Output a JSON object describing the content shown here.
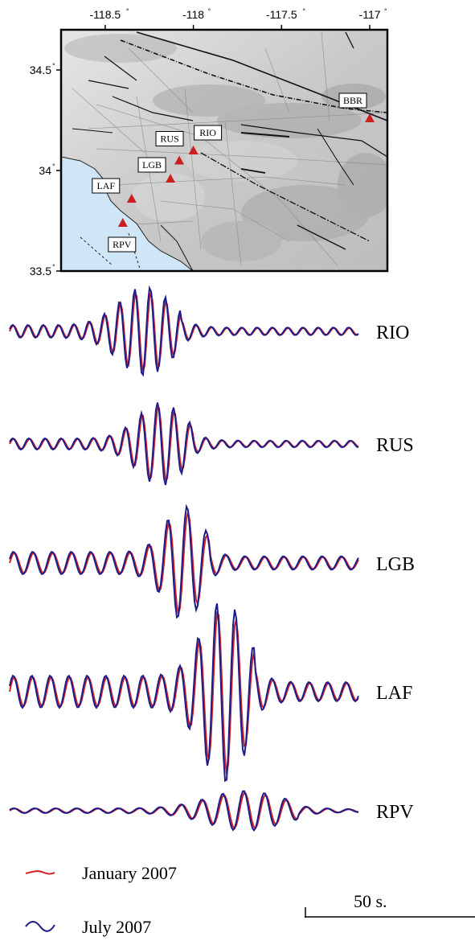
{
  "map": {
    "x_ticks": [
      {
        "lon": -118.5,
        "label": "-118.5"
      },
      {
        "lon": -118.0,
        "label": "-118"
      },
      {
        "lon": -117.5,
        "label": "-117.5"
      },
      {
        "lon": -117.0,
        "label": "-117"
      }
    ],
    "y_ticks": [
      {
        "lat": 34.5,
        "label": "34.5"
      },
      {
        "lat": 34.0,
        "label": "34"
      },
      {
        "lat": 33.5,
        "label": "33.5"
      }
    ],
    "degree_symbol": "°",
    "lon_range": [
      -118.75,
      -116.9
    ],
    "lat_range": [
      33.5,
      34.7
    ],
    "land_color": "#cfcfcf",
    "water_color": "#cfe6f7",
    "station_color": "#cc1f1f",
    "stations": [
      {
        "code": "RIO",
        "lon": -118.0,
        "lat": 34.1
      },
      {
        "code": "RUS",
        "lon": -118.08,
        "lat": 34.05
      },
      {
        "code": "LGB",
        "lon": -118.13,
        "lat": 33.96
      },
      {
        "code": "LAF",
        "lon": -118.35,
        "lat": 33.86
      },
      {
        "code": "RPV",
        "lon": -118.4,
        "lat": 33.74
      },
      {
        "code": "BBR",
        "lon": -117.0,
        "lat": 34.26
      }
    ]
  },
  "traces": {
    "stations": [
      "RIO",
      "RUS",
      "LGB",
      "LAF",
      "RPV"
    ],
    "series": [
      {
        "name": "January 2007",
        "color": "#d42020"
      },
      {
        "name": "July 2007",
        "color": "#1c1c8a"
      }
    ]
  },
  "legend": {
    "items": [
      {
        "label": "January 2007",
        "color": "#d42020",
        "icon": "wave-line-icon"
      },
      {
        "label": "July 2007",
        "color": "#1c1c8a",
        "icon": "wave-line-icon"
      }
    ]
  },
  "scale_bar": {
    "label": "50 s.",
    "value_s": 50
  }
}
